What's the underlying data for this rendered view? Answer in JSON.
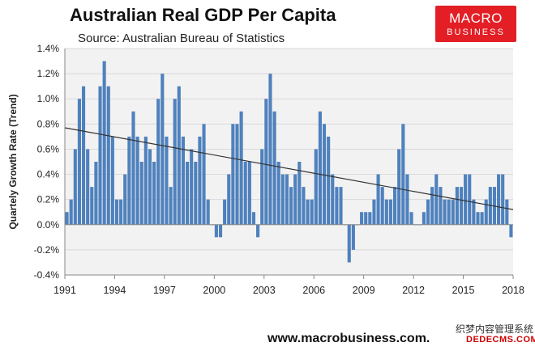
{
  "header": {
    "title": "Australian Real GDP Per Capita",
    "subtitle": "Source: Australian Bureau of Statistics"
  },
  "logo": {
    "line1": "MACRO",
    "line2": "BUSINESS",
    "color": "#e31e25"
  },
  "footer": {
    "website": "www.macrobusiness.com."
  },
  "watermark": {
    "text": "织梦内容管理系统",
    "url": "DEDECMS.COM"
  },
  "chart_data": {
    "type": "bar",
    "title": "Australian Real GDP Per Capita",
    "subtitle": "Source: Australian Bureau of Statistics",
    "ylabel": "Quartely Growth Rate (Trend)",
    "xlabel": "",
    "ylim": [
      -0.4,
      1.4
    ],
    "yticks": [
      "1.4%",
      "1.2%",
      "1.0%",
      "0.8%",
      "0.6%",
      "0.4%",
      "0.2%",
      "0.0%",
      "-0.2%",
      "-0.4%"
    ],
    "xticks": [
      "1991",
      "1994",
      "1997",
      "2000",
      "2003",
      "2006",
      "2009",
      "2012",
      "2015",
      "2018"
    ],
    "xrange": [
      1991,
      2018
    ],
    "x_start": 1991.0,
    "step": 0.25,
    "bar_color": "#4f81bd",
    "plot_background": "#f2f2f2",
    "trendline": {
      "start": 0.77,
      "end": 0.12,
      "color": "#333333"
    },
    "values": [
      0.1,
      0.2,
      0.6,
      1.0,
      1.1,
      0.6,
      0.3,
      0.5,
      1.1,
      1.3,
      1.1,
      0.7,
      0.2,
      0.2,
      0.4,
      0.7,
      0.9,
      0.7,
      0.5,
      0.7,
      0.6,
      0.5,
      1.0,
      1.2,
      0.7,
      0.3,
      1.0,
      1.1,
      0.7,
      0.5,
      0.6,
      0.5,
      0.7,
      0.8,
      0.2,
      0.0,
      -0.1,
      -0.1,
      0.2,
      0.4,
      0.8,
      0.8,
      0.9,
      0.5,
      0.5,
      0.1,
      -0.1,
      0.6,
      1.0,
      1.2,
      0.9,
      0.5,
      0.4,
      0.4,
      0.3,
      0.4,
      0.5,
      0.3,
      0.2,
      0.2,
      0.6,
      0.9,
      0.8,
      0.7,
      0.4,
      0.3,
      0.3,
      0.0,
      -0.3,
      -0.2,
      0.0,
      0.1,
      0.1,
      0.1,
      0.2,
      0.4,
      0.3,
      0.2,
      0.2,
      0.3,
      0.6,
      0.8,
      0.4,
      0.1,
      0.0,
      0.0,
      0.1,
      0.2,
      0.3,
      0.4,
      0.3,
      0.2,
      0.2,
      0.2,
      0.3,
      0.3,
      0.4,
      0.4,
      0.2,
      0.1,
      0.1,
      0.2,
      0.3,
      0.3,
      0.4,
      0.4,
      0.2,
      -0.1
    ]
  }
}
